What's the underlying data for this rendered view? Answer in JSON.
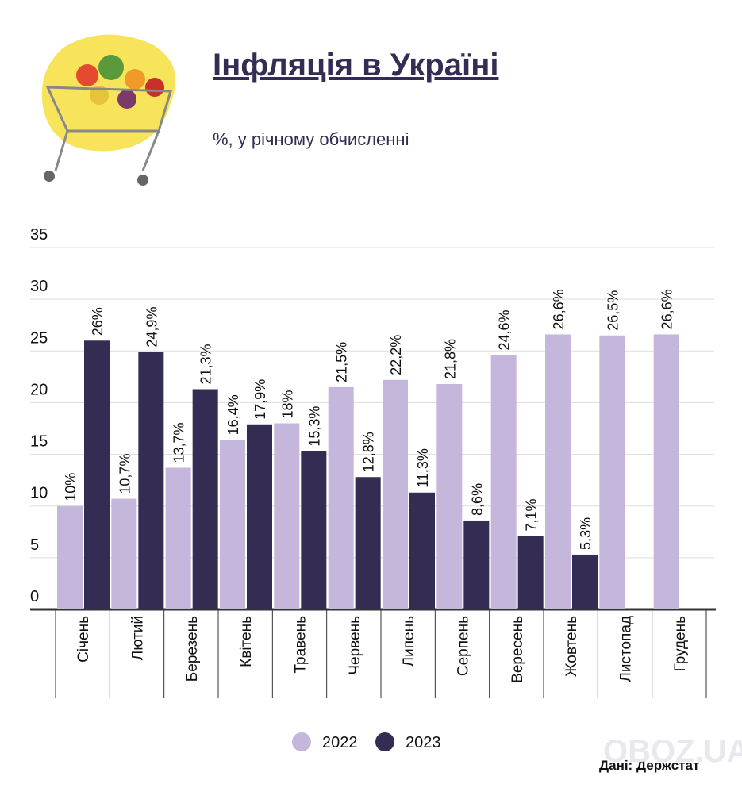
{
  "chart_data": {
    "type": "bar",
    "title": "Інфляція в Україні",
    "subtitle": "%, у річному обчисленні",
    "source": "Дані: Держстат",
    "watermark": "OBOZ.UA",
    "categories": [
      "Січень",
      "Лютий",
      "Березень",
      "Квітень",
      "Травень",
      "Червень",
      "Липень",
      "Серпень",
      "Вересень",
      "Жовтень",
      "Листопад",
      "Грудень"
    ],
    "series": [
      {
        "name": "2022",
        "color": "#c5b6dc",
        "values": [
          10,
          10.7,
          13.7,
          16.4,
          18,
          21.5,
          22.2,
          21.8,
          24.6,
          26.6,
          26.5,
          26.6
        ],
        "value_labels": [
          "10%",
          "10,7%",
          "13,7%",
          "16,4%",
          "18%",
          "21,5%",
          "22,2%",
          "21,8%",
          "24,6%",
          "26,6%",
          "26,5%",
          "26,6%"
        ]
      },
      {
        "name": "2023",
        "color": "#352c54",
        "values": [
          26,
          24.9,
          21.3,
          17.9,
          15.3,
          12.8,
          11.3,
          8.6,
          7.1,
          5.3,
          null,
          null
        ],
        "value_labels": [
          "26%",
          "24,9%",
          "21,3%",
          "17,9%",
          "15,3%",
          "12,8%",
          "11,3%",
          "8,6%",
          "7,1%",
          "5,3%",
          null,
          null
        ]
      }
    ],
    "ylim": [
      0,
      35
    ],
    "yticks": [
      0,
      5,
      10,
      15,
      20,
      25,
      30,
      35
    ],
    "grid": true
  }
}
